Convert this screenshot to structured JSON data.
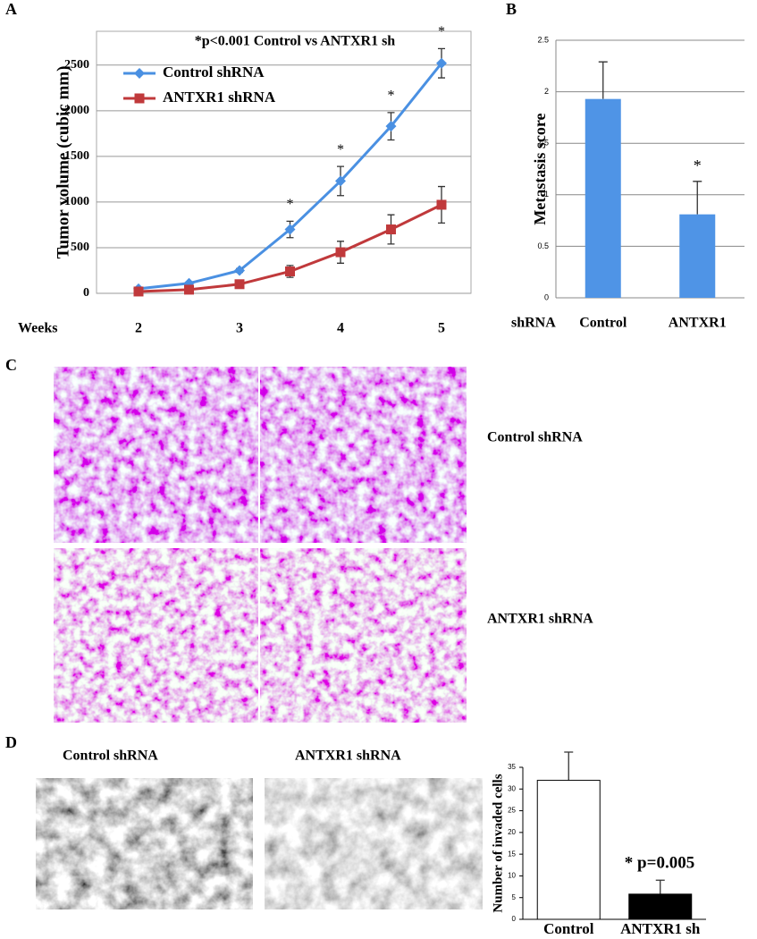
{
  "panels": {
    "a": "A",
    "b": "B",
    "c": "C",
    "d": "D"
  },
  "images": {
    "c_top": "Control shRNA",
    "c_bottom": "ANTXR1 shRNA",
    "d_left": "Control shRNA",
    "d_right": "ANTXR1 shRNA"
  },
  "chart_data": [
    {
      "type": "line",
      "annotation": "*p<0.001 Control vs ANTXR1 sh",
      "y_label": "Tumor volume (cubic mm)",
      "x_label": "Weeks",
      "categories": [
        "2",
        null,
        "3",
        null,
        "4",
        null,
        "5"
      ],
      "ylim": [
        0,
        2870
      ],
      "yticks": [
        0,
        500,
        1000,
        1500,
        2000,
        2500
      ],
      "grid": true,
      "legend": "upper left",
      "series": [
        {
          "name": "Control shRNA",
          "color": "#4a90e2",
          "marker": "diamond",
          "values": [
            50,
            110,
            250,
            700,
            1230,
            1830,
            2520
          ],
          "errors": [
            10,
            15,
            20,
            90,
            160,
            150,
            160
          ],
          "significance": [
            null,
            null,
            null,
            "*",
            "*",
            "*",
            "*"
          ]
        },
        {
          "name": "ANTXR1 shRNA",
          "color": "#c0393b",
          "marker": "square",
          "values": [
            20,
            40,
            100,
            240,
            450,
            700,
            970
          ],
          "errors": [
            10,
            10,
            15,
            65,
            120,
            160,
            200
          ]
        }
      ]
    },
    {
      "type": "bar",
      "y_label": "Metastasis score",
      "x_label": "shRNA",
      "categories": [
        "Control",
        "ANTXR1"
      ],
      "values": [
        1.93,
        0.81
      ],
      "errors": [
        0.36,
        0.32
      ],
      "significance": [
        null,
        "*"
      ],
      "color": "#4f94e6",
      "ylim": [
        0,
        2.5
      ],
      "yticks": [
        0,
        0.5,
        1,
        1.5,
        2,
        2.5
      ],
      "grid": true
    },
    {
      "type": "bar",
      "y_label": "Number of invaded cells",
      "annotation": "* p=0.005",
      "categories": [
        "Control",
        "ANTXR1 sh"
      ],
      "values": [
        32,
        5.8
      ],
      "errors": [
        6.5,
        3.2
      ],
      "colors": [
        "#ffffff",
        "#000000"
      ],
      "ylim": [
        0,
        35
      ],
      "yticks": [
        0,
        5,
        10,
        15,
        20,
        25,
        30,
        35
      ],
      "grid": false
    }
  ]
}
